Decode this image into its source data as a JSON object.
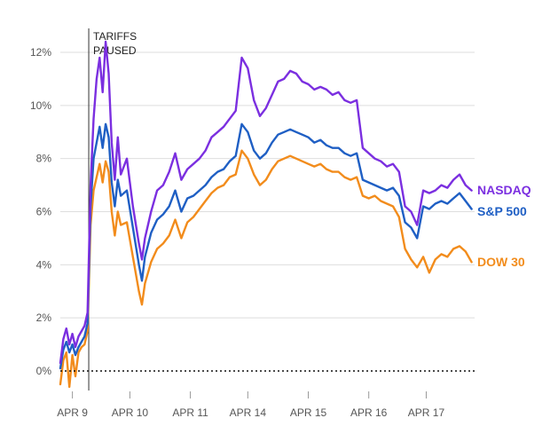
{
  "chart_data": {
    "type": "line",
    "title": "",
    "xlabel": "",
    "ylabel": "",
    "y_unit": "%",
    "ylim": [
      -1,
      12.5
    ],
    "y_ticks": [
      "12%",
      "10%",
      "8%",
      "6%",
      "4%",
      "2%",
      "0%"
    ],
    "y_tick_values": [
      12,
      10,
      8,
      6,
      4,
      2,
      0
    ],
    "x_tick_labels": [
      "APR 9",
      "APR 10",
      "APR 11",
      "APR 14",
      "APR 15",
      "APR 16",
      "APR 17"
    ],
    "grid": true,
    "zero_line": "dotted",
    "legend": "labels at line ends (right)",
    "annotation": {
      "line1": "TARIFFS",
      "line2": "PAUSED",
      "at": "Apr 9 afternoon (~1:18 PM)"
    },
    "series": [
      {
        "name": "NASDAQ",
        "color": "#7b2fe0",
        "values": [
          [
            9.0,
            0.3
          ],
          [
            9.05,
            1.2
          ],
          [
            9.1,
            1.6
          ],
          [
            9.15,
            1.0
          ],
          [
            9.2,
            1.4
          ],
          [
            9.25,
            0.9
          ],
          [
            9.3,
            1.3
          ],
          [
            9.35,
            1.5
          ],
          [
            9.4,
            1.7
          ],
          [
            9.45,
            2.2
          ],
          [
            9.5,
            7.0
          ],
          [
            9.55,
            9.5
          ],
          [
            9.6,
            11.0
          ],
          [
            9.65,
            11.8
          ],
          [
            9.7,
            10.5
          ],
          [
            9.75,
            12.4
          ],
          [
            9.8,
            11.2
          ],
          [
            9.85,
            8.6
          ],
          [
            9.9,
            7.2
          ],
          [
            9.95,
            8.8
          ],
          [
            10.0,
            7.4
          ],
          [
            10.1,
            8.0
          ],
          [
            10.2,
            6.2
          ],
          [
            10.3,
            4.8
          ],
          [
            10.35,
            4.2
          ],
          [
            10.4,
            5.0
          ],
          [
            10.5,
            6.0
          ],
          [
            10.6,
            6.8
          ],
          [
            10.7,
            7.0
          ],
          [
            10.8,
            7.5
          ],
          [
            10.9,
            8.2
          ],
          [
            11.0,
            7.2
          ],
          [
            11.1,
            7.6
          ],
          [
            11.2,
            7.8
          ],
          [
            11.3,
            8.0
          ],
          [
            11.4,
            8.3
          ],
          [
            11.5,
            8.8
          ],
          [
            11.6,
            9.0
          ],
          [
            11.7,
            9.2
          ],
          [
            11.8,
            9.5
          ],
          [
            11.9,
            9.8
          ],
          [
            12.0,
            11.8
          ],
          [
            12.1,
            11.4
          ],
          [
            12.2,
            10.2
          ],
          [
            12.3,
            9.6
          ],
          [
            12.4,
            9.9
          ],
          [
            12.5,
            10.4
          ],
          [
            12.6,
            10.9
          ],
          [
            12.7,
            11.0
          ],
          [
            12.8,
            11.3
          ],
          [
            12.9,
            11.2
          ],
          [
            13.0,
            10.9
          ],
          [
            13.1,
            10.8
          ],
          [
            13.2,
            10.6
          ],
          [
            13.3,
            10.7
          ],
          [
            13.4,
            10.6
          ],
          [
            13.5,
            10.4
          ],
          [
            13.6,
            10.5
          ],
          [
            13.7,
            10.2
          ],
          [
            13.8,
            10.1
          ],
          [
            13.9,
            10.2
          ],
          [
            14.0,
            8.4
          ],
          [
            14.1,
            8.2
          ],
          [
            14.2,
            8.0
          ],
          [
            14.3,
            7.9
          ],
          [
            14.4,
            7.7
          ],
          [
            14.5,
            7.8
          ],
          [
            14.6,
            7.5
          ],
          [
            14.7,
            6.2
          ],
          [
            14.8,
            6.0
          ],
          [
            14.9,
            5.5
          ],
          [
            15.0,
            6.8
          ],
          [
            15.1,
            6.7
          ],
          [
            15.2,
            6.8
          ],
          [
            15.3,
            7.0
          ],
          [
            15.4,
            6.9
          ],
          [
            15.5,
            7.2
          ],
          [
            15.6,
            7.4
          ],
          [
            15.7,
            7.0
          ],
          [
            15.8,
            6.8
          ]
        ]
      },
      {
        "name": "S&P 500",
        "color": "#1f5fc4",
        "values": [
          [
            9.0,
            0.1
          ],
          [
            9.05,
            0.8
          ],
          [
            9.1,
            1.1
          ],
          [
            9.15,
            0.7
          ],
          [
            9.2,
            1.0
          ],
          [
            9.25,
            0.6
          ],
          [
            9.3,
            0.9
          ],
          [
            9.35,
            1.1
          ],
          [
            9.4,
            1.3
          ],
          [
            9.45,
            1.8
          ],
          [
            9.5,
            6.2
          ],
          [
            9.55,
            8.0
          ],
          [
            9.6,
            8.6
          ],
          [
            9.65,
            9.2
          ],
          [
            9.7,
            8.4
          ],
          [
            9.75,
            9.3
          ],
          [
            9.8,
            8.8
          ],
          [
            9.85,
            7.1
          ],
          [
            9.9,
            6.2
          ],
          [
            9.95,
            7.2
          ],
          [
            10.0,
            6.6
          ],
          [
            10.1,
            6.8
          ],
          [
            10.2,
            5.4
          ],
          [
            10.3,
            4.0
          ],
          [
            10.35,
            3.4
          ],
          [
            10.4,
            4.3
          ],
          [
            10.5,
            5.2
          ],
          [
            10.6,
            5.7
          ],
          [
            10.7,
            5.9
          ],
          [
            10.8,
            6.2
          ],
          [
            10.9,
            6.8
          ],
          [
            11.0,
            6.0
          ],
          [
            11.1,
            6.5
          ],
          [
            11.2,
            6.6
          ],
          [
            11.3,
            6.8
          ],
          [
            11.4,
            7.0
          ],
          [
            11.5,
            7.3
          ],
          [
            11.6,
            7.5
          ],
          [
            11.7,
            7.6
          ],
          [
            11.8,
            7.9
          ],
          [
            11.9,
            8.1
          ],
          [
            12.0,
            9.3
          ],
          [
            12.1,
            9.0
          ],
          [
            12.2,
            8.3
          ],
          [
            12.3,
            8.0
          ],
          [
            12.4,
            8.2
          ],
          [
            12.5,
            8.6
          ],
          [
            12.6,
            8.9
          ],
          [
            12.7,
            9.0
          ],
          [
            12.8,
            9.1
          ],
          [
            12.9,
            9.0
          ],
          [
            13.0,
            8.9
          ],
          [
            13.1,
            8.8
          ],
          [
            13.2,
            8.6
          ],
          [
            13.3,
            8.7
          ],
          [
            13.4,
            8.5
          ],
          [
            13.5,
            8.4
          ],
          [
            13.6,
            8.4
          ],
          [
            13.7,
            8.2
          ],
          [
            13.8,
            8.1
          ],
          [
            13.9,
            8.2
          ],
          [
            14.0,
            7.2
          ],
          [
            14.1,
            7.1
          ],
          [
            14.2,
            7.0
          ],
          [
            14.3,
            6.9
          ],
          [
            14.4,
            6.8
          ],
          [
            14.5,
            6.9
          ],
          [
            14.6,
            6.6
          ],
          [
            14.7,
            5.6
          ],
          [
            14.8,
            5.4
          ],
          [
            14.9,
            5.0
          ],
          [
            15.0,
            6.2
          ],
          [
            15.1,
            6.1
          ],
          [
            15.2,
            6.3
          ],
          [
            15.3,
            6.4
          ],
          [
            15.4,
            6.3
          ],
          [
            15.5,
            6.5
          ],
          [
            15.6,
            6.7
          ],
          [
            15.7,
            6.4
          ],
          [
            15.8,
            6.1
          ]
        ]
      },
      {
        "name": "DOW 30",
        "color": "#f28c1c",
        "values": [
          [
            9.0,
            -0.5
          ],
          [
            9.05,
            0.4
          ],
          [
            9.1,
            0.7
          ],
          [
            9.15,
            -0.6
          ],
          [
            9.2,
            0.6
          ],
          [
            9.25,
            -0.2
          ],
          [
            9.3,
            0.7
          ],
          [
            9.35,
            0.9
          ],
          [
            9.4,
            1.0
          ],
          [
            9.45,
            1.5
          ],
          [
            9.5,
            5.5
          ],
          [
            9.55,
            6.8
          ],
          [
            9.6,
            7.3
          ],
          [
            9.65,
            7.8
          ],
          [
            9.7,
            7.1
          ],
          [
            9.75,
            7.9
          ],
          [
            9.8,
            7.5
          ],
          [
            9.85,
            6.0
          ],
          [
            9.9,
            5.1
          ],
          [
            9.95,
            6.0
          ],
          [
            10.0,
            5.5
          ],
          [
            10.1,
            5.6
          ],
          [
            10.2,
            4.3
          ],
          [
            10.3,
            3.0
          ],
          [
            10.35,
            2.5
          ],
          [
            10.4,
            3.3
          ],
          [
            10.5,
            4.1
          ],
          [
            10.6,
            4.6
          ],
          [
            10.7,
            4.8
          ],
          [
            10.8,
            5.1
          ],
          [
            10.9,
            5.7
          ],
          [
            11.0,
            5.0
          ],
          [
            11.1,
            5.6
          ],
          [
            11.2,
            5.8
          ],
          [
            11.3,
            6.1
          ],
          [
            11.4,
            6.4
          ],
          [
            11.5,
            6.7
          ],
          [
            11.6,
            6.9
          ],
          [
            11.7,
            7.0
          ],
          [
            11.8,
            7.3
          ],
          [
            11.9,
            7.4
          ],
          [
            12.0,
            8.3
          ],
          [
            12.1,
            8.0
          ],
          [
            12.2,
            7.4
          ],
          [
            12.3,
            7.0
          ],
          [
            12.4,
            7.2
          ],
          [
            12.5,
            7.6
          ],
          [
            12.6,
            7.9
          ],
          [
            12.7,
            8.0
          ],
          [
            12.8,
            8.1
          ],
          [
            12.9,
            8.0
          ],
          [
            13.0,
            7.9
          ],
          [
            13.1,
            7.8
          ],
          [
            13.2,
            7.7
          ],
          [
            13.3,
            7.8
          ],
          [
            13.4,
            7.6
          ],
          [
            13.5,
            7.5
          ],
          [
            13.6,
            7.5
          ],
          [
            13.7,
            7.3
          ],
          [
            13.8,
            7.2
          ],
          [
            13.9,
            7.3
          ],
          [
            14.0,
            6.6
          ],
          [
            14.1,
            6.5
          ],
          [
            14.2,
            6.6
          ],
          [
            14.3,
            6.4
          ],
          [
            14.4,
            6.3
          ],
          [
            14.5,
            6.2
          ],
          [
            14.6,
            5.8
          ],
          [
            14.7,
            4.6
          ],
          [
            14.8,
            4.2
          ],
          [
            14.9,
            3.9
          ],
          [
            15.0,
            4.3
          ],
          [
            15.1,
            3.7
          ],
          [
            15.2,
            4.2
          ],
          [
            15.3,
            4.4
          ],
          [
            15.4,
            4.3
          ],
          [
            15.5,
            4.6
          ],
          [
            15.6,
            4.7
          ],
          [
            15.7,
            4.5
          ],
          [
            15.8,
            4.1
          ]
        ]
      }
    ]
  }
}
